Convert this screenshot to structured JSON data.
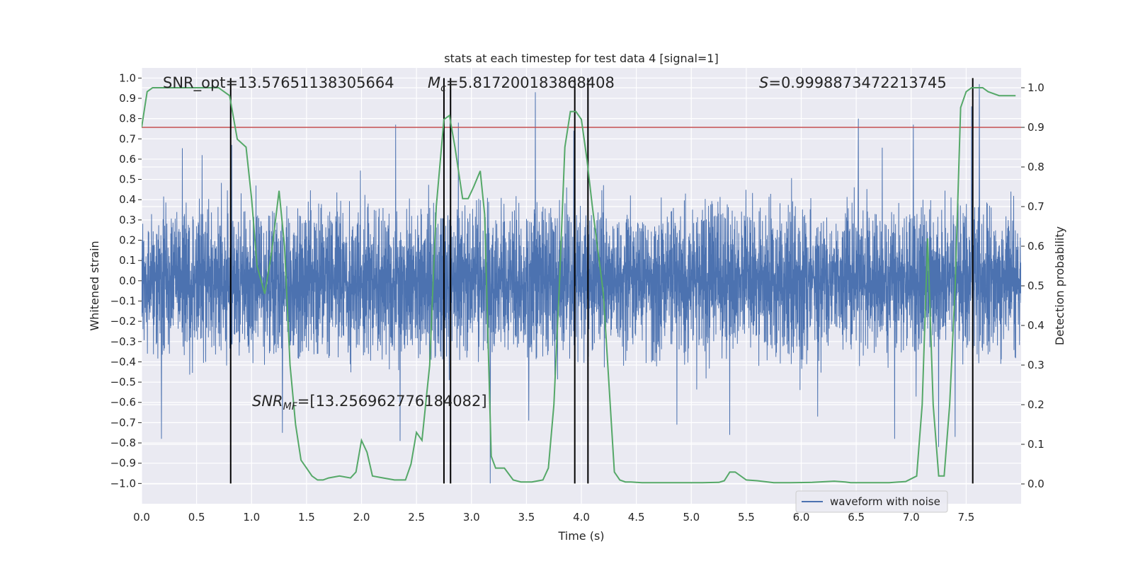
{
  "chart_data": {
    "type": "line",
    "title": "stats at each timestep for test data 4 [signal=1]",
    "xlabel": "Time (s)",
    "ylabel_left": "Whitened strain",
    "ylabel_right": "Detection probability",
    "xlim": [
      0.0,
      8.0
    ],
    "ylim_left": [
      -1.1,
      1.05
    ],
    "ylim_right": [
      -0.05,
      1.05
    ],
    "x_ticks": [
      0.0,
      0.5,
      1.0,
      1.5,
      2.0,
      2.5,
      3.0,
      3.5,
      4.0,
      4.5,
      5.0,
      5.5,
      6.0,
      6.5,
      7.0,
      7.5
    ],
    "x_tick_labels": [
      "0.0",
      "0.5",
      "1.0",
      "1.5",
      "2.0",
      "2.5",
      "3.0",
      "3.5",
      "4.0",
      "4.5",
      "5.0",
      "5.5",
      "6.0",
      "6.5",
      "7.0",
      "7.5"
    ],
    "y_left_ticks": [
      1.0,
      0.9,
      0.8,
      0.7,
      0.6,
      0.5,
      0.4,
      0.3,
      0.2,
      0.1,
      0.0,
      -0.1,
      -0.2,
      -0.3,
      -0.4,
      -0.5,
      -0.6,
      -0.7,
      -0.8,
      -0.9,
      -1.0
    ],
    "y_left_tick_labels": [
      "1.0",
      "0.9",
      "0.8",
      "0.7",
      "0.6",
      "0.5",
      "0.4",
      "0.3",
      "0.2",
      "0.1",
      "0.0",
      "−0.1",
      "−0.2",
      "−0.3",
      "−0.4",
      "−0.5",
      "−0.6",
      "−0.7",
      "−0.8",
      "−0.9",
      "−1.0"
    ],
    "y_right_ticks": [
      1.0,
      0.9,
      0.8,
      0.7,
      0.6,
      0.5,
      0.4,
      0.3,
      0.2,
      0.1,
      0.0
    ],
    "y_right_tick_labels": [
      "1.0",
      "0.9",
      "0.8",
      "0.7",
      "0.6",
      "0.5",
      "0.4",
      "0.3",
      "0.2",
      "0.1",
      "0.0"
    ],
    "grid": true,
    "legend": {
      "placement": "lower-right",
      "entries": [
        {
          "label": "waveform with noise",
          "color": "#4c72b0"
        }
      ]
    },
    "annotations": {
      "snr_opt": "SNR_opt=13.57651138305664",
      "mc_symbol": "M",
      "mc_sub": "c",
      "mc_value": "=5.817200183868408",
      "s_symbol": "S",
      "s_value": "=0.9998873472213745",
      "snr_mf_symbol": "SNR",
      "snr_mf_sub": "MF",
      "snr_mf_value": "=[13.256962776184082]"
    },
    "threshold": {
      "value": 0.9,
      "axis": "right",
      "color": "#c44e52"
    },
    "vertical_lines": {
      "x": [
        0.81,
        2.75,
        2.81,
        3.94,
        4.06,
        7.56
      ],
      "y_range": [
        -1.0,
        1.0
      ],
      "color": "#000000"
    },
    "strain_series": {
      "name": "waveform with noise",
      "color": "#4c72b0",
      "duration": 8.0,
      "typical_amplitude": 0.45,
      "peak_spikes": [
        {
          "x": 0.55,
          "y": 0.62
        },
        {
          "x": 0.82,
          "y": 0.67
        },
        {
          "x": 2.31,
          "y": 0.77
        },
        {
          "x": 2.88,
          "y": 0.78
        },
        {
          "x": 3.58,
          "y": 0.93
        },
        {
          "x": 3.93,
          "y": 0.74
        },
        {
          "x": 6.52,
          "y": 0.8
        },
        {
          "x": 7.02,
          "y": 0.77
        },
        {
          "x": 7.55,
          "y": 0.86
        },
        {
          "x": 7.62,
          "y": 0.97
        },
        {
          "x": 0.18,
          "y": -0.78
        },
        {
          "x": 1.28,
          "y": -0.75
        },
        {
          "x": 2.35,
          "y": -0.79
        },
        {
          "x": 3.17,
          "y": -1.0
        },
        {
          "x": 3.52,
          "y": -0.69
        },
        {
          "x": 4.87,
          "y": -0.71
        },
        {
          "x": 5.35,
          "y": -0.76
        },
        {
          "x": 6.15,
          "y": -0.67
        },
        {
          "x": 6.85,
          "y": -0.78
        },
        {
          "x": 7.25,
          "y": -0.82
        },
        {
          "x": 7.4,
          "y": -0.77
        }
      ]
    },
    "probability_series": {
      "color": "#55a868",
      "x": [
        0.0,
        0.05,
        0.1,
        0.2,
        0.3,
        0.4,
        0.5,
        0.6,
        0.7,
        0.75,
        0.8,
        0.87,
        0.95,
        1.0,
        1.05,
        1.12,
        1.18,
        1.25,
        1.3,
        1.35,
        1.4,
        1.45,
        1.5,
        1.55,
        1.6,
        1.65,
        1.7,
        1.8,
        1.9,
        1.95,
        2.0,
        2.05,
        2.1,
        2.2,
        2.3,
        2.4,
        2.45,
        2.5,
        2.55,
        2.62,
        2.68,
        2.75,
        2.8,
        2.85,
        2.92,
        2.97,
        3.02,
        3.08,
        3.12,
        3.18,
        3.22,
        3.3,
        3.38,
        3.45,
        3.55,
        3.65,
        3.7,
        3.75,
        3.8,
        3.85,
        3.9,
        3.95,
        4.0,
        4.05,
        4.1,
        4.2,
        4.3,
        4.35,
        4.4,
        4.45,
        4.55,
        4.7,
        4.9,
        5.1,
        5.25,
        5.3,
        5.35,
        5.4,
        5.5,
        5.6,
        5.75,
        5.9,
        6.1,
        6.3,
        6.4,
        6.45,
        6.5,
        6.6,
        6.8,
        6.95,
        7.05,
        7.1,
        7.15,
        7.2,
        7.25,
        7.3,
        7.35,
        7.4,
        7.45,
        7.5,
        7.55,
        7.6,
        7.65,
        7.7,
        7.8,
        7.9,
        7.95
      ],
      "y": [
        0.9,
        0.99,
        1.0,
        1.0,
        1.0,
        1.0,
        1.0,
        1.0,
        1.0,
        0.99,
        0.98,
        0.87,
        0.85,
        0.72,
        0.55,
        0.48,
        0.58,
        0.74,
        0.6,
        0.3,
        0.15,
        0.06,
        0.04,
        0.02,
        0.01,
        0.01,
        0.015,
        0.02,
        0.015,
        0.03,
        0.11,
        0.08,
        0.02,
        0.015,
        0.01,
        0.01,
        0.05,
        0.13,
        0.11,
        0.3,
        0.7,
        0.92,
        0.93,
        0.85,
        0.72,
        0.72,
        0.75,
        0.79,
        0.68,
        0.07,
        0.04,
        0.04,
        0.01,
        0.005,
        0.005,
        0.01,
        0.04,
        0.2,
        0.5,
        0.85,
        0.94,
        0.94,
        0.92,
        0.82,
        0.7,
        0.48,
        0.03,
        0.01,
        0.005,
        0.005,
        0.003,
        0.003,
        0.003,
        0.003,
        0.004,
        0.008,
        0.03,
        0.03,
        0.01,
        0.008,
        0.003,
        0.003,
        0.004,
        0.007,
        0.005,
        0.003,
        0.003,
        0.003,
        0.003,
        0.006,
        0.02,
        0.2,
        0.62,
        0.2,
        0.02,
        0.02,
        0.2,
        0.5,
        0.95,
        0.99,
        1.0,
        1.0,
        1.0,
        0.99,
        0.98,
        0.98,
        0.98
      ]
    }
  }
}
